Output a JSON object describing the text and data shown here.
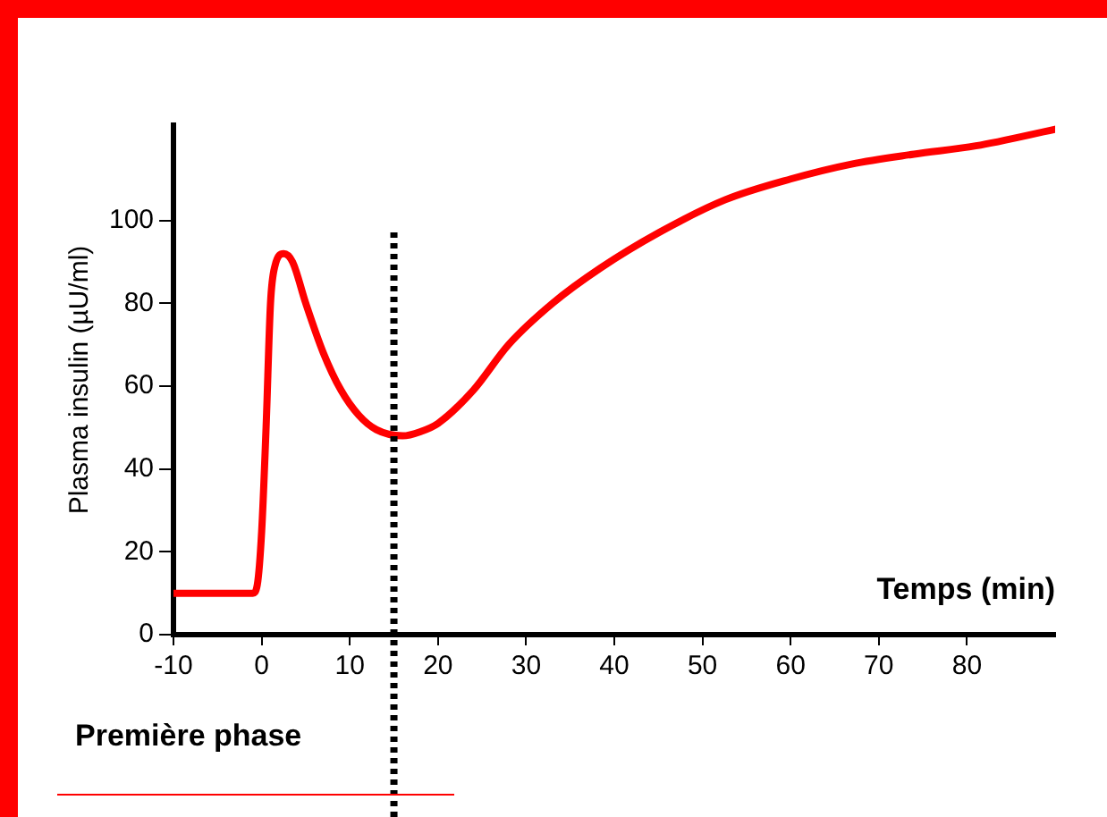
{
  "chart_data": {
    "type": "line",
    "xlabel": "Temps (min)",
    "ylabel": "Plasma insulin (µU/ml)",
    "annotations": [
      "Première phase"
    ],
    "x": [
      -10,
      -1,
      -0.5,
      0,
      0.5,
      1,
      1.5,
      2.5,
      3.5,
      5,
      7,
      9,
      11,
      13,
      16,
      18,
      20,
      24,
      28,
      33,
      38.5,
      45,
      52.6,
      60,
      66.9,
      74,
      81,
      90
    ],
    "series": [
      {
        "color": "#ff0000",
        "values": [
          10,
          10,
          12,
          25,
          50,
          80,
          89,
          92,
          90,
          80,
          68,
          59,
          53,
          49.5,
          48,
          49,
          51,
          59,
          70,
          80,
          88.6,
          97,
          105,
          110,
          113.6,
          116,
          118,
          122
        ]
      }
    ],
    "xlim": [
      -10,
      90
    ],
    "xticks": [
      -10,
      0,
      10,
      20,
      30,
      40,
      50,
      60,
      70,
      80
    ],
    "ylim": [
      0,
      123
    ],
    "yticks": [
      0,
      20,
      40,
      60,
      80,
      100
    ],
    "grid": false,
    "legend": false,
    "marker": "none",
    "line_style": "solid",
    "ref_lines": [
      {
        "axis": "x",
        "value": 15,
        "color": "#000000",
        "line_style": "dotted"
      }
    ]
  }
}
